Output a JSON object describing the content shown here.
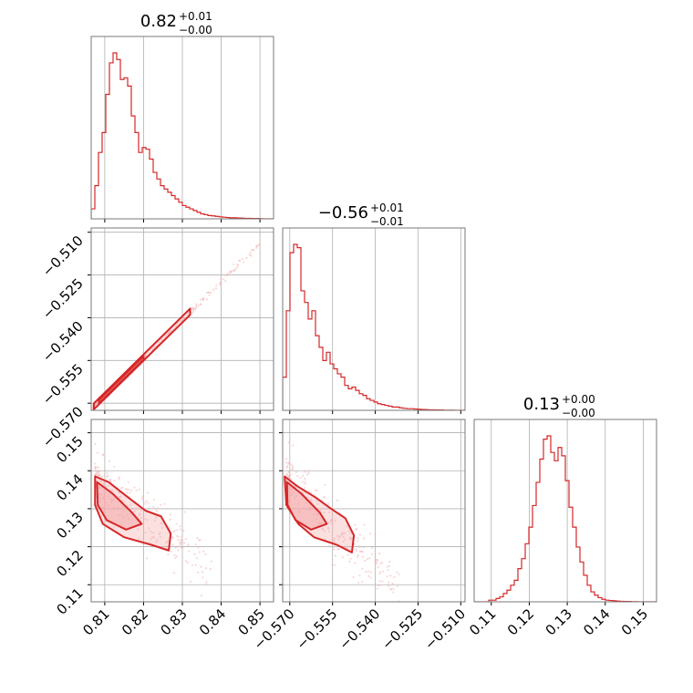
{
  "colors": {
    "line": "#d62728",
    "fill": "#f4a6a7",
    "scatter": "#f2b8b9",
    "grid": "#b0b0b0",
    "frame": "#7a7a7a"
  },
  "chart_data": {
    "type": "corner",
    "grid": true,
    "parameters": [
      {
        "title_value": "0.82",
        "title_plus": "+0.01",
        "title_minus": "−0.00",
        "lim": [
          0.8065,
          0.8535
        ],
        "ticks": [
          0.81,
          0.82,
          0.83,
          0.84,
          0.85
        ],
        "tick_labels": [
          "0.81",
          "0.82",
          "0.83",
          "0.84",
          "0.85"
        ]
      },
      {
        "title_value": "−0.56",
        "title_plus": "+0.01",
        "title_minus": "−0.01",
        "lim": [
          -0.5725,
          -0.5085
        ],
        "ticks": [
          -0.57,
          -0.555,
          -0.54,
          -0.525,
          -0.51
        ],
        "tick_labels": [
          "−0.570",
          "−0.555",
          "−0.540",
          "−0.525",
          "−0.510"
        ]
      },
      {
        "title_value": "0.13",
        "title_plus": "+0.00",
        "title_minus": "−0.00",
        "lim": [
          0.1055,
          0.1535
        ],
        "ticks": [
          0.11,
          0.12,
          0.13,
          0.14,
          0.15
        ],
        "tick_labels": [
          "0.11",
          "0.12",
          "0.13",
          "0.14",
          "0.15"
        ]
      }
    ],
    "histograms": [
      {
        "param": 0,
        "start": 0.8065,
        "bin_width": 0.00094,
        "counts": [
          0.06,
          0.2,
          0.4,
          0.52,
          0.75,
          0.94,
          1.0,
          0.96,
          0.84,
          0.85,
          0.8,
          0.62,
          0.52,
          0.4,
          0.43,
          0.42,
          0.36,
          0.28,
          0.24,
          0.2,
          0.18,
          0.16,
          0.14,
          0.12,
          0.1,
          0.08,
          0.07,
          0.06,
          0.05,
          0.04,
          0.03,
          0.025,
          0.02,
          0.018,
          0.015,
          0.012,
          0.01,
          0.008,
          0.006,
          0.006,
          0.005,
          0.004,
          0.003,
          0.003,
          0.002,
          0.002,
          0.001,
          0.0,
          0.0,
          0.0
        ]
      },
      {
        "param": 1,
        "start": -0.5725,
        "bin_width": 0.00128,
        "counts": [
          0.2,
          0.6,
          0.95,
          1.0,
          0.98,
          0.72,
          0.65,
          0.55,
          0.6,
          0.45,
          0.38,
          0.3,
          0.35,
          0.28,
          0.25,
          0.22,
          0.2,
          0.15,
          0.13,
          0.14,
          0.12,
          0.1,
          0.09,
          0.07,
          0.06,
          0.05,
          0.04,
          0.035,
          0.03,
          0.025,
          0.02,
          0.02,
          0.015,
          0.012,
          0.01,
          0.01,
          0.008,
          0.006,
          0.005,
          0.004,
          0.003,
          0.003,
          0.002,
          0.002,
          0.001,
          0.001,
          0.001,
          0.0,
          0.0,
          0.0
        ]
      },
      {
        "param": 2,
        "start": 0.1055,
        "bin_width": 0.00096,
        "counts": [
          0.0,
          0.0,
          0.0,
          0.0,
          0.01,
          0.01,
          0.02,
          0.03,
          0.05,
          0.07,
          0.1,
          0.13,
          0.2,
          0.26,
          0.35,
          0.45,
          0.58,
          0.72,
          0.86,
          0.98,
          1.0,
          0.9,
          0.85,
          0.93,
          0.88,
          0.73,
          0.57,
          0.45,
          0.33,
          0.24,
          0.16,
          0.1,
          0.06,
          0.04,
          0.025,
          0.015,
          0.01,
          0.008,
          0.006,
          0.004,
          0.003,
          0.002,
          0.002,
          0.001,
          0.001,
          0.0,
          0.0,
          0.0,
          0.0,
          0.0
        ]
      }
    ]
  }
}
